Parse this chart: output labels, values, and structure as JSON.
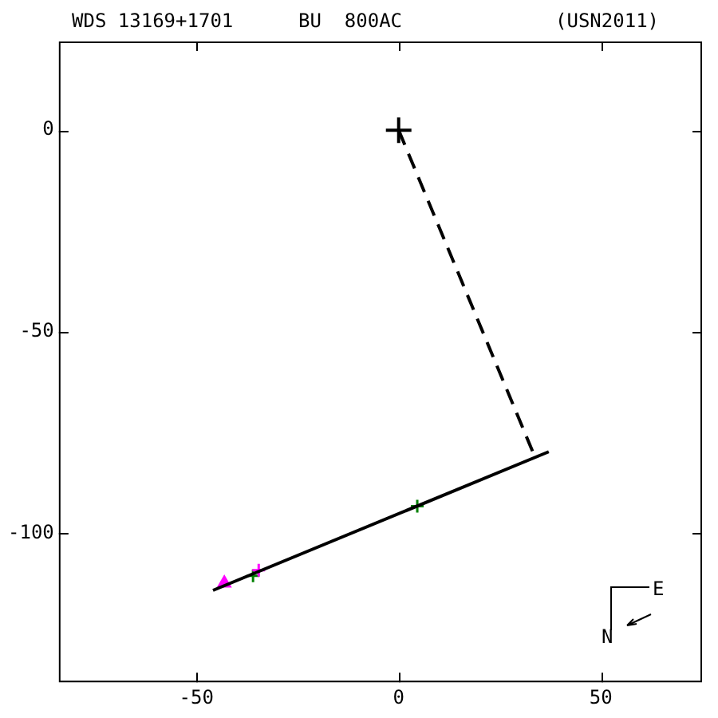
{
  "chart_data": {
    "type": "scatter",
    "title": "WDS 13169+1701",
    "subtitle": "BU  800AC",
    "annotations": [
      "(USN2011)",
      "E",
      "N"
    ],
    "xlim": [
      -84,
      75
    ],
    "ylim": [
      -137,
      22
    ],
    "xticks": [
      -50,
      0,
      50
    ],
    "yticks": [
      0,
      -50,
      -100
    ],
    "grid": false,
    "legend": false,
    "series": [
      {
        "type": "line",
        "color": "#000000",
        "x": [
          -45.9,
          37.1
        ],
        "values": [
          -114.2,
          -79.8
        ],
        "marker": "none",
        "line_style": "solid"
      },
      {
        "type": "line",
        "color": "#000000",
        "x": [
          0,
          33.6
        ],
        "values": [
          0,
          -80.9
        ],
        "marker": "none",
        "line_style": "dashed"
      },
      {
        "type": "scatter",
        "color": "#000000",
        "x": [
          0
        ],
        "values": [
          0
        ],
        "marker": "cross"
      },
      {
        "type": "scatter",
        "color": "#ff00ff",
        "x": [
          -43.1
        ],
        "values": [
          -112.4
        ],
        "marker": "triangle"
      },
      {
        "type": "scatter",
        "color": "#ff00ff",
        "x": [
          -34.6
        ],
        "values": [
          -109.2
        ],
        "marker": "cross"
      },
      {
        "type": "scatter",
        "color": "#008000",
        "x": [
          -36.0,
          4.6
        ],
        "values": [
          -110.6,
          -93.3
        ],
        "marker": "cross"
      }
    ]
  }
}
